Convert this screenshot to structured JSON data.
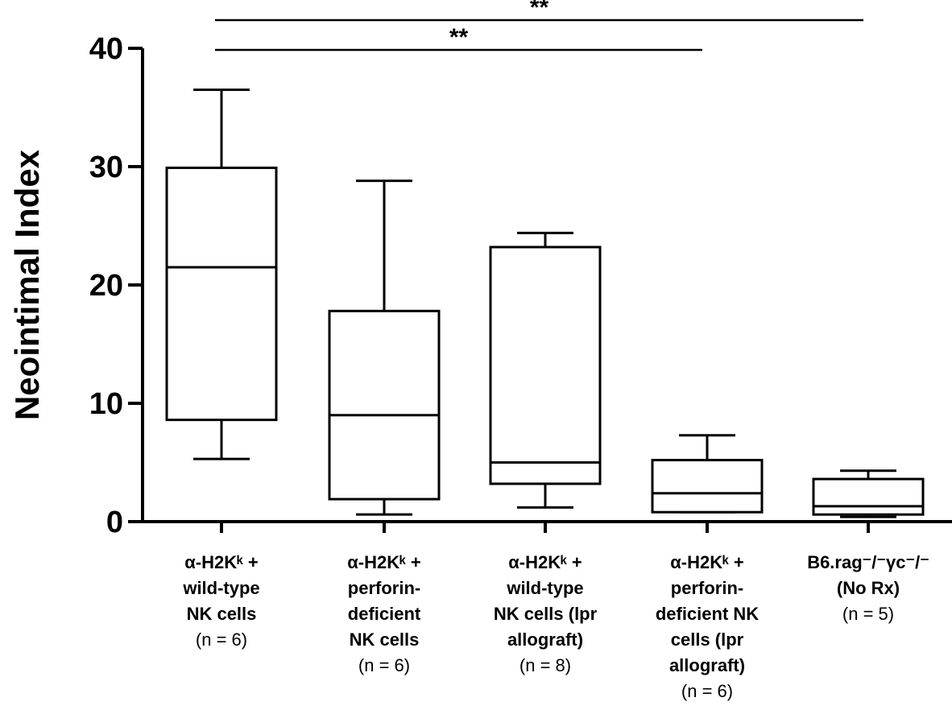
{
  "chart_data": {
    "type": "box",
    "ylabel": "Neointimal Index",
    "ylim": [
      0,
      40
    ],
    "yticks": [
      0,
      10,
      20,
      30,
      40
    ],
    "categories": [
      {
        "lines": [
          "α-H2Kᵏ +",
          "wild-type",
          "NK cells",
          "(n = 6)"
        ],
        "bold_lines": 3,
        "min": 5.3,
        "q1": 8.6,
        "median": 21.5,
        "q3": 29.9,
        "max": 36.5
      },
      {
        "lines": [
          "α-H2Kᵏ +",
          "perforin-",
          "deficient",
          "NK cells",
          "(n = 6)"
        ],
        "bold_lines": 4,
        "min": 0.6,
        "q1": 1.9,
        "median": 9.0,
        "q3": 17.8,
        "max": 28.8
      },
      {
        "lines": [
          "α-H2Kᵏ +",
          "wild-type",
          "NK cells (lpr",
          "allograft)",
          "(n = 8)"
        ],
        "bold_lines": 4,
        "min": 1.2,
        "q1": 3.2,
        "median": 5.0,
        "q3": 23.2,
        "max": 24.4
      },
      {
        "lines": [
          "α-H2Kᵏ +",
          "perforin-",
          "deficient NK",
          "cells (lpr",
          "allograft)",
          "(n = 6)"
        ],
        "bold_lines": 5,
        "min": 0.8,
        "q1": 0.8,
        "median": 2.4,
        "q3": 5.2,
        "max": 7.3
      },
      {
        "lines": [
          "B6.rag⁻/⁻γc⁻/⁻",
          "(No Rx)",
          "(n = 5)"
        ],
        "bold_lines": 2,
        "min": 0.4,
        "q1": 0.6,
        "median": 1.3,
        "q3": 3.6,
        "max": 4.3
      }
    ],
    "significance": [
      {
        "from": 0,
        "to": 3,
        "label": "**"
      },
      {
        "from": 0,
        "to": 4,
        "label": "**"
      }
    ]
  }
}
